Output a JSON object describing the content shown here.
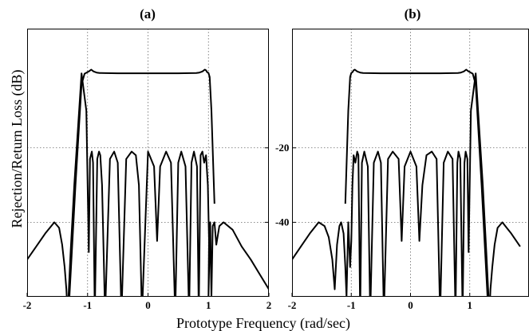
{
  "chart_data": [
    {
      "type": "line",
      "title": "(a)",
      "xlim": [
        -2,
        2
      ],
      "ylim": [
        -60,
        12
      ],
      "xticks": [
        -2,
        -1,
        0,
        1,
        2
      ],
      "xtick_labels": [
        "-2",
        "-1",
        "0",
        "1",
        "2"
      ],
      "yticks": [
        -20,
        -40
      ],
      "ytick_labels": [
        "-20",
        "-40"
      ],
      "grid": true,
      "series": [
        {
          "x": [
            -2.0,
            -1.85,
            -1.7,
            -1.55,
            -1.47,
            -1.42,
            -1.38,
            -1.35,
            -1.33,
            -1.31,
            -1.28,
            -1.22,
            -1.1,
            -1.02,
            -0.98,
            -0.96,
            -0.93,
            -0.91,
            -0.88,
            -0.84,
            -0.81,
            -0.79,
            -0.76,
            -0.71,
            -0.63,
            -0.56,
            -0.5,
            -0.44,
            -0.36,
            -0.27,
            -0.2,
            -0.15,
            -0.1,
            0.0,
            0.1,
            0.15,
            0.2,
            0.3,
            0.38,
            0.45,
            0.5,
            0.55,
            0.62,
            0.68,
            0.72,
            0.76,
            0.81,
            0.84,
            0.87,
            0.9,
            0.93,
            0.96,
            0.99,
            1.01,
            1.0,
            1.02,
            1.03,
            1.04,
            1.05,
            1.07,
            1.1,
            1.13,
            1.18,
            1.25,
            1.4,
            1.55,
            1.7,
            1.85,
            2.0
          ],
          "y": [
            -50,
            -46.5,
            -43,
            -40,
            -41.5,
            -46,
            -52,
            -58,
            -65,
            -58,
            -48,
            -30,
            0,
            -10,
            -48,
            -23,
            -21,
            -24,
            -65,
            -23,
            -21,
            -22,
            -30,
            -65,
            -23,
            -21,
            -24,
            -65,
            -23,
            -21,
            -22,
            -30,
            -65,
            -21,
            -25,
            -45,
            -25,
            -21,
            -24,
            -65,
            -24,
            -21,
            -25,
            -65,
            -24,
            -21,
            -25,
            -65,
            -22,
            -21,
            -24,
            -22,
            -30,
            -45,
            -60,
            -45,
            -40,
            -52,
            -60,
            -41,
            -40,
            -46,
            -41,
            -40,
            -42,
            -46.5,
            -50,
            -54,
            -58
          ]
        },
        {
          "x": [
            -1.3,
            -1.2,
            -1.1,
            -1.05,
            -0.98,
            -0.94,
            -0.9,
            -0.85,
            -0.8,
            -0.7,
            -0.5,
            0.0,
            0.5,
            0.7,
            0.8,
            0.85,
            0.9,
            0.94,
            0.96,
            0.98,
            1.0,
            1.02,
            1.05,
            1.1
          ],
          "y": [
            -60,
            -30,
            -3,
            -0.1,
            0.5,
            1.0,
            0.5,
            0.2,
            0.1,
            0.05,
            0.02,
            0.01,
            0.02,
            0.05,
            0.1,
            0.2,
            0.5,
            1.0,
            0.8,
            0.3,
            0.1,
            -1,
            -10,
            -35
          ]
        }
      ]
    },
    {
      "type": "line",
      "title": "(b)",
      "xlim": [
        -2,
        2
      ],
      "ylim": [
        -60,
        12
      ],
      "xticks": [
        -2,
        -1,
        0,
        1
      ],
      "xtick_labels": [
        "-2",
        "-1",
        "0",
        "1"
      ],
      "yticks": [
        -20,
        -40
      ],
      "ytick_labels": [
        "-20",
        "-40"
      ],
      "grid": true,
      "series": [
        {
          "x": [
            -2.0,
            -1.85,
            -1.7,
            -1.55,
            -1.45,
            -1.38,
            -1.32,
            -1.28,
            -1.24,
            -1.2,
            -1.17,
            -1.13,
            -1.1,
            -1.08,
            -1.05,
            -1.02,
            -1.0,
            -0.98,
            -0.96,
            -0.93,
            -0.9,
            -0.88,
            -0.85,
            -0.82,
            -0.78,
            -0.72,
            -0.68,
            -0.62,
            -0.55,
            -0.5,
            -0.45,
            -0.38,
            -0.3,
            -0.2,
            -0.15,
            -0.1,
            0.0,
            0.1,
            0.15,
            0.2,
            0.27,
            0.36,
            0.44,
            0.5,
            0.56,
            0.63,
            0.71,
            0.76,
            0.79,
            0.81,
            0.84,
            0.88,
            0.91,
            0.93,
            0.96,
            0.98,
            1.02,
            1.1,
            1.22,
            1.28,
            1.31,
            1.33,
            1.35,
            1.38,
            1.42,
            1.47,
            1.55,
            1.7,
            1.85
          ],
          "y": [
            -50,
            -46.5,
            -43,
            -40,
            -41,
            -44,
            -50,
            -58,
            -46,
            -41,
            -40,
            -43,
            -52,
            -60,
            -40,
            -52,
            -45,
            -30,
            -22,
            -24,
            -21,
            -22,
            -65,
            -24,
            -21,
            -25,
            -65,
            -24,
            -21,
            -24,
            -65,
            -23,
            -21,
            -23,
            -45,
            -25,
            -21,
            -25,
            -45,
            -30,
            -22,
            -21,
            -23,
            -65,
            -24,
            -21,
            -23,
            -65,
            -24,
            -21,
            -23,
            -65,
            -24,
            -21,
            -23,
            -48,
            -10,
            0,
            -30,
            -48,
            -58,
            -65,
            -58,
            -52,
            -46,
            -41.5,
            -40,
            -43,
            -46.5
          ]
        },
        {
          "x": [
            -1.1,
            -1.05,
            -1.02,
            -1.0,
            -0.98,
            -0.96,
            -0.94,
            -0.9,
            -0.85,
            -0.8,
            -0.7,
            -0.5,
            0.0,
            0.5,
            0.7,
            0.8,
            0.85,
            0.9,
            0.94,
            0.98,
            1.05,
            1.1,
            1.2,
            1.3
          ],
          "y": [
            -35,
            -10,
            -1,
            0.1,
            0.3,
            0.8,
            1.0,
            0.5,
            0.2,
            0.1,
            0.05,
            0.02,
            0.01,
            0.02,
            0.05,
            0.1,
            0.2,
            0.5,
            1.0,
            0.5,
            -0.1,
            -3,
            -30,
            -60
          ]
        }
      ]
    }
  ],
  "figure": {
    "ylabel": "Rejection/Return Loss (dB)",
    "xlabel": "Prototype Frequency (rad/sec)"
  }
}
